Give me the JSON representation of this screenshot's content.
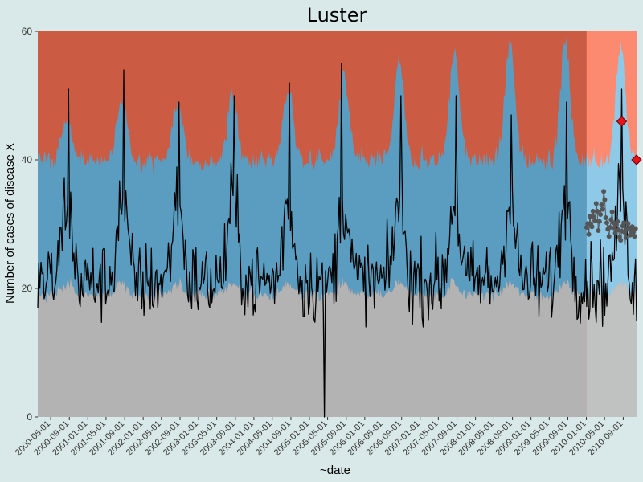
{
  "chart_data": {
    "type": "area",
    "title": "Luster",
    "xlabel": "~date",
    "ylabel": "Number of cases of disease X",
    "xlim": [
      "2000-02-06",
      "2010-11-28"
    ],
    "ylim": [
      0,
      60
    ],
    "y_ticks": [
      0,
      20,
      40,
      60
    ],
    "x_ticks": [
      "2000-05-01",
      "2000-09-01",
      "2001-01-01",
      "2001-05-01",
      "2001-09-01",
      "2002-01-01",
      "2002-05-01",
      "2002-09-01",
      "2003-01-01",
      "2003-05-01",
      "2003-09-01",
      "2004-01-01",
      "2004-05-01",
      "2004-09-01",
      "2005-01-01",
      "2005-05-01",
      "2005-09-01",
      "2006-01-01",
      "2006-05-01",
      "2006-09-01",
      "2007-01-01",
      "2007-05-01",
      "2007-09-01",
      "2008-01-01",
      "2008-05-01",
      "2008-09-01",
      "2009-01-01",
      "2009-05-01",
      "2009-09-01",
      "2010-01-01",
      "2010-05-01",
      "2010-09-01"
    ],
    "grid": false,
    "current_period_start": "2010-01-03",
    "current_period_end": "2010-11-28",
    "seasonal_peak_month": 8,
    "bands": {
      "lower": {
        "baseline": 19,
        "seasonal_amplitude": 2
      },
      "upper": {
        "baseline": 40,
        "seasonal_amplitude": 8,
        "peak_values": [
          46,
          49,
          49,
          50,
          51,
          53,
          55,
          57,
          58,
          58,
          58
        ]
      }
    },
    "observed_series": {
      "name": "",
      "resolution": "weekly",
      "minimum": {
        "date": "2005-04-10",
        "value": 0
      },
      "annual_peaks": [
        {
          "date": "2000-08-27",
          "value": 51
        },
        {
          "date": "2001-08-26",
          "value": 54
        },
        {
          "date": "2002-08-25",
          "value": 49
        },
        {
          "date": "2003-08-24",
          "value": 50
        },
        {
          "date": "2004-08-22",
          "value": 52
        },
        {
          "date": "2005-07-31",
          "value": 55
        },
        {
          "date": "2006-08-27",
          "value": 50
        },
        {
          "date": "2007-08-26",
          "value": 50
        },
        {
          "date": "2008-08-24",
          "value": 47
        },
        {
          "date": "2009-08-23",
          "value": 49
        },
        {
          "date": "2010-08-22",
          "value": 51
        }
      ],
      "end": {
        "date": "2010-11-28",
        "value": 15
      }
    },
    "expected_current_period": {
      "name": "",
      "values": [
        29.5,
        30.1,
        28.4,
        31.2,
        30.0,
        29.6,
        32.0,
        31.1,
        30.5,
        33.2,
        32.0,
        29.0,
        30.4,
        31.5,
        33.0,
        32.3,
        35.1,
        33.8,
        31.0,
        30.2,
        29.2,
        28.1,
        29.5,
        30.7,
        31.9,
        30.2,
        29.4,
        28.6,
        29.9,
        30.4,
        29.1,
        28.0,
        27.5,
        28.9,
        29.7,
        30.2,
        28.7,
        27.9,
        29.2,
        30.1,
        29.4,
        28.3,
        29.0,
        29.6,
        28.8,
        28.1,
        29.3
      ]
    },
    "alarms": [
      {
        "date": "2010-08-22",
        "value": 46
      },
      {
        "date": "2010-11-28",
        "value": 40
      }
    ],
    "colors": {
      "background": "#d9e8e9",
      "upper_band_past": "#cc5b43",
      "upper_band_current": "#fb8a70",
      "mid_band_past": "#5a9dc0",
      "mid_band_past_light": "#6eafcf",
      "mid_band_current": "#8fc9e8",
      "lower_band_past": "#b3b3b3",
      "lower_band_current": "#c0c2c2",
      "observed_line": "#000000",
      "expected_points": "#555555",
      "alarm_fill": "#e8131a",
      "alarm_stroke": "#6b0000"
    }
  }
}
